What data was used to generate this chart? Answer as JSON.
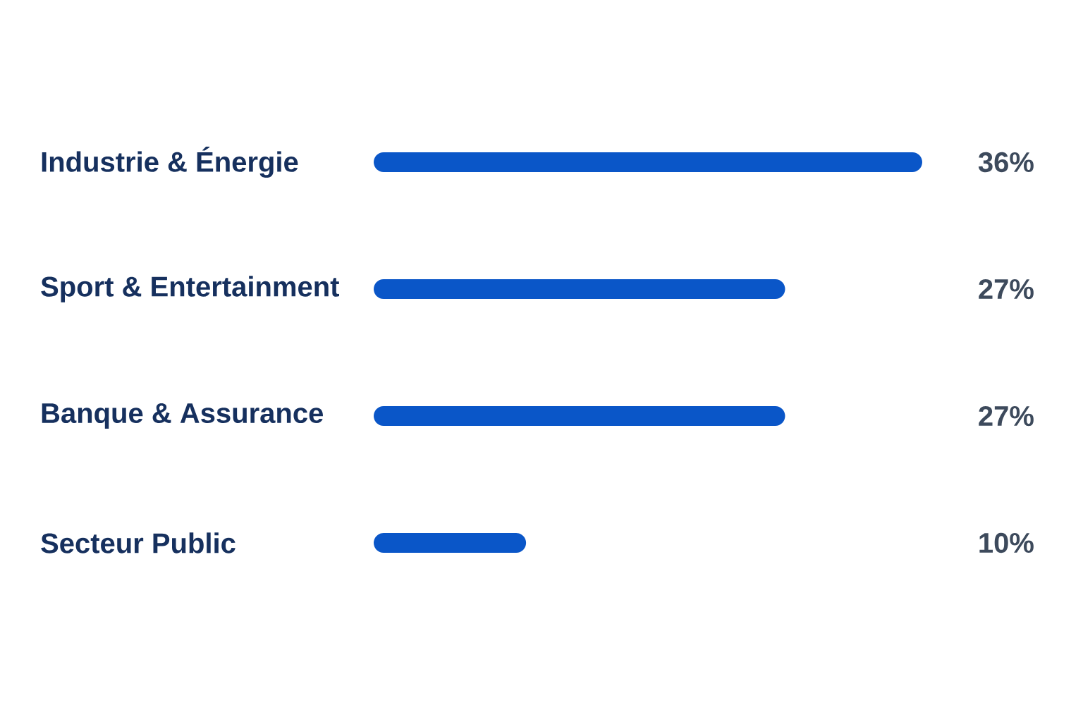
{
  "chart_data": {
    "type": "bar",
    "orientation": "horizontal",
    "categories": [
      "Industrie & Énergie",
      "Sport & Entertainment",
      "Banque & Assurance",
      "Secteur Public"
    ],
    "values": [
      36,
      27,
      27,
      10
    ],
    "value_labels": [
      "36%",
      "27%",
      "27%",
      "10%"
    ],
    "color": "#0a56c8"
  }
}
